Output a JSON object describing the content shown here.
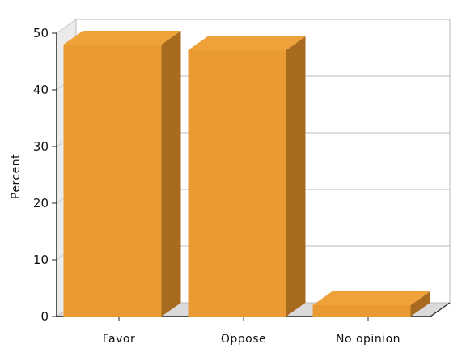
{
  "chart_data": {
    "type": "bar",
    "categories": [
      "Favor",
      "Oppose",
      "No opinion"
    ],
    "series": [
      {
        "values": [
          48,
          47,
          2
        ]
      }
    ],
    "title": "",
    "xlabel": "",
    "ylabel": "Percent",
    "ylim": [
      0,
      50
    ],
    "yticks": [
      0,
      10,
      20,
      30,
      40,
      50
    ],
    "grid": true,
    "three_d": true,
    "colors": {
      "bar_front": "#E99A33",
      "bar_top": "#F0A23A",
      "bar_side": "#A86A1E",
      "floor": "#DADADA",
      "left_wall": "#EBEBEB",
      "grid": "#BBBBBB",
      "axis": "#222222"
    }
  }
}
